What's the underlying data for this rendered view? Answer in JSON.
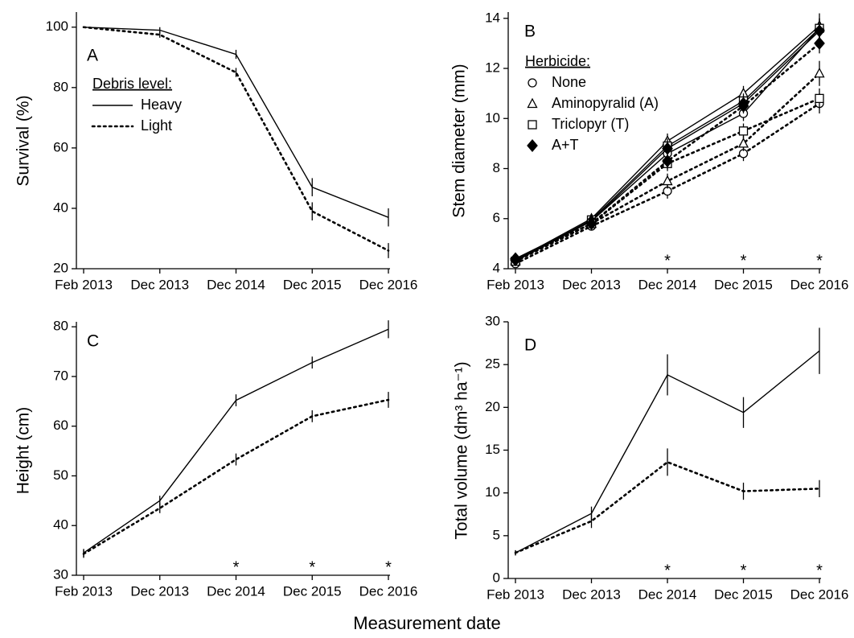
{
  "figure": {
    "xlabel": "Measurement date"
  },
  "chart_data": [
    {
      "type": "line",
      "label": "A",
      "ylabel": "Survival (%)",
      "categories": [
        "Feb 2013",
        "Dec 2013",
        "Dec 2014",
        "Dec 2015",
        "Dec 2016"
      ],
      "ylim": [
        20,
        105
      ],
      "yticks": [
        20,
        40,
        60,
        80,
        100
      ],
      "legend_title": "Debris level:",
      "legend": "upper-left",
      "series": [
        {
          "name": "Heavy",
          "color": "#000000",
          "dash": "solid",
          "values": [
            100,
            99,
            91,
            47,
            37
          ],
          "errors": [
            0,
            1,
            1.5,
            3,
            3
          ]
        },
        {
          "name": "Light",
          "color": "#000000",
          "dash": "dotted",
          "values": [
            100,
            97.5,
            85,
            39,
            26
          ],
          "errors": [
            0,
            1,
            1.5,
            3,
            2.5
          ]
        }
      ]
    },
    {
      "type": "line",
      "label": "B",
      "ylabel": "Stem diameter (mm)",
      "categories": [
        "Feb 2013",
        "Dec 2013",
        "Dec 2014",
        "Dec 2015",
        "Dec 2016"
      ],
      "ylim": [
        4,
        14.25
      ],
      "yticks": [
        4,
        6,
        8,
        10,
        12,
        14
      ],
      "legend_title": "Herbicide:",
      "legend": "upper-left",
      "annotations": [
        null,
        null,
        "*",
        "*",
        "*"
      ],
      "series": [
        {
          "name": "None",
          "color": "#000000",
          "dash": "solid",
          "marker": "circle",
          "values": [
            4.3,
            5.9,
            8.6,
            10.2,
            13.6
          ],
          "errors": [
            0.1,
            0.15,
            0.3,
            0.3,
            0.4
          ]
        },
        {
          "name": "Aminopyralid (A)",
          "color": "#000000",
          "dash": "solid",
          "marker": "triangle",
          "values": [
            4.35,
            6.0,
            9.1,
            11.0,
            13.7
          ],
          "errors": [
            0.1,
            0.15,
            0.3,
            0.3,
            0.5
          ]
        },
        {
          "name": "Triclopyr (T)",
          "color": "#000000",
          "dash": "solid",
          "marker": "square",
          "values": [
            4.3,
            5.95,
            8.9,
            10.7,
            13.6
          ],
          "errors": [
            0.1,
            0.15,
            0.3,
            0.3,
            0.4
          ]
        },
        {
          "name": "A+T",
          "color": "#000000",
          "dash": "solid",
          "marker": "diamond",
          "values": [
            4.4,
            5.9,
            8.8,
            10.6,
            13.5
          ],
          "errors": [
            0.1,
            0.15,
            0.3,
            0.3,
            0.4
          ]
        },
        {
          "color": "#000000",
          "dash": "dotted",
          "marker": "circle",
          "values": [
            4.2,
            5.7,
            7.1,
            8.6,
            10.6
          ],
          "errors": [
            0.1,
            0.15,
            0.3,
            0.3,
            0.4
          ]
        },
        {
          "color": "#000000",
          "dash": "dotted",
          "marker": "triangle",
          "values": [
            4.3,
            5.8,
            7.5,
            9.0,
            11.8
          ],
          "errors": [
            0.1,
            0.15,
            0.3,
            0.3,
            0.5
          ]
        },
        {
          "color": "#000000",
          "dash": "dotted",
          "marker": "square",
          "values": [
            4.3,
            5.8,
            8.2,
            9.5,
            10.8
          ],
          "errors": [
            0.1,
            0.15,
            0.3,
            0.3,
            0.4
          ]
        },
        {
          "color": "#000000",
          "dash": "dotted",
          "marker": "diamond",
          "values": [
            4.35,
            5.8,
            8.3,
            10.5,
            13.0
          ],
          "errors": [
            0.1,
            0.15,
            0.3,
            0.3,
            0.4
          ]
        }
      ]
    },
    {
      "type": "line",
      "label": "C",
      "ylabel": "Height (cm)",
      "categories": [
        "Feb 2013",
        "Dec 2013",
        "Dec 2014",
        "Dec 2015",
        "Dec 2016"
      ],
      "ylim": [
        30,
        81
      ],
      "yticks": [
        30,
        40,
        50,
        60,
        70,
        80
      ],
      "annotations": [
        null,
        null,
        "*",
        "*",
        "*"
      ],
      "series": [
        {
          "color": "#000000",
          "dash": "solid",
          "values": [
            34.5,
            45,
            65.2,
            72.8,
            79.5
          ],
          "errors": [
            0.8,
            1,
            1.2,
            1.2,
            1.8
          ]
        },
        {
          "color": "#000000",
          "dash": "dotted",
          "values": [
            34.3,
            43.5,
            53.3,
            62,
            65.3
          ],
          "errors": [
            0.8,
            1,
            1.2,
            1.2,
            1.6
          ]
        }
      ]
    },
    {
      "type": "line",
      "label": "D",
      "ylabel": "Total volume (dm³ ha⁻¹)",
      "categories": [
        "Feb 2013",
        "Dec 2013",
        "Dec 2014",
        "Dec 2015",
        "Dec 2016"
      ],
      "ylim": [
        0,
        30
      ],
      "yticks": [
        0,
        5,
        10,
        15,
        20,
        25,
        30
      ],
      "annotations": [
        null,
        null,
        "*",
        "*",
        "*"
      ],
      "series": [
        {
          "color": "#000000",
          "dash": "solid",
          "values": [
            3.0,
            7.6,
            23.8,
            19.4,
            26.6
          ],
          "errors": [
            0.3,
            0.8,
            2.4,
            1.8,
            2.7
          ]
        },
        {
          "color": "#000000",
          "dash": "dotted",
          "values": [
            3.0,
            6.7,
            13.6,
            10.2,
            10.5
          ],
          "errors": [
            0.3,
            0.8,
            1.6,
            1.0,
            1.0
          ]
        }
      ]
    }
  ]
}
